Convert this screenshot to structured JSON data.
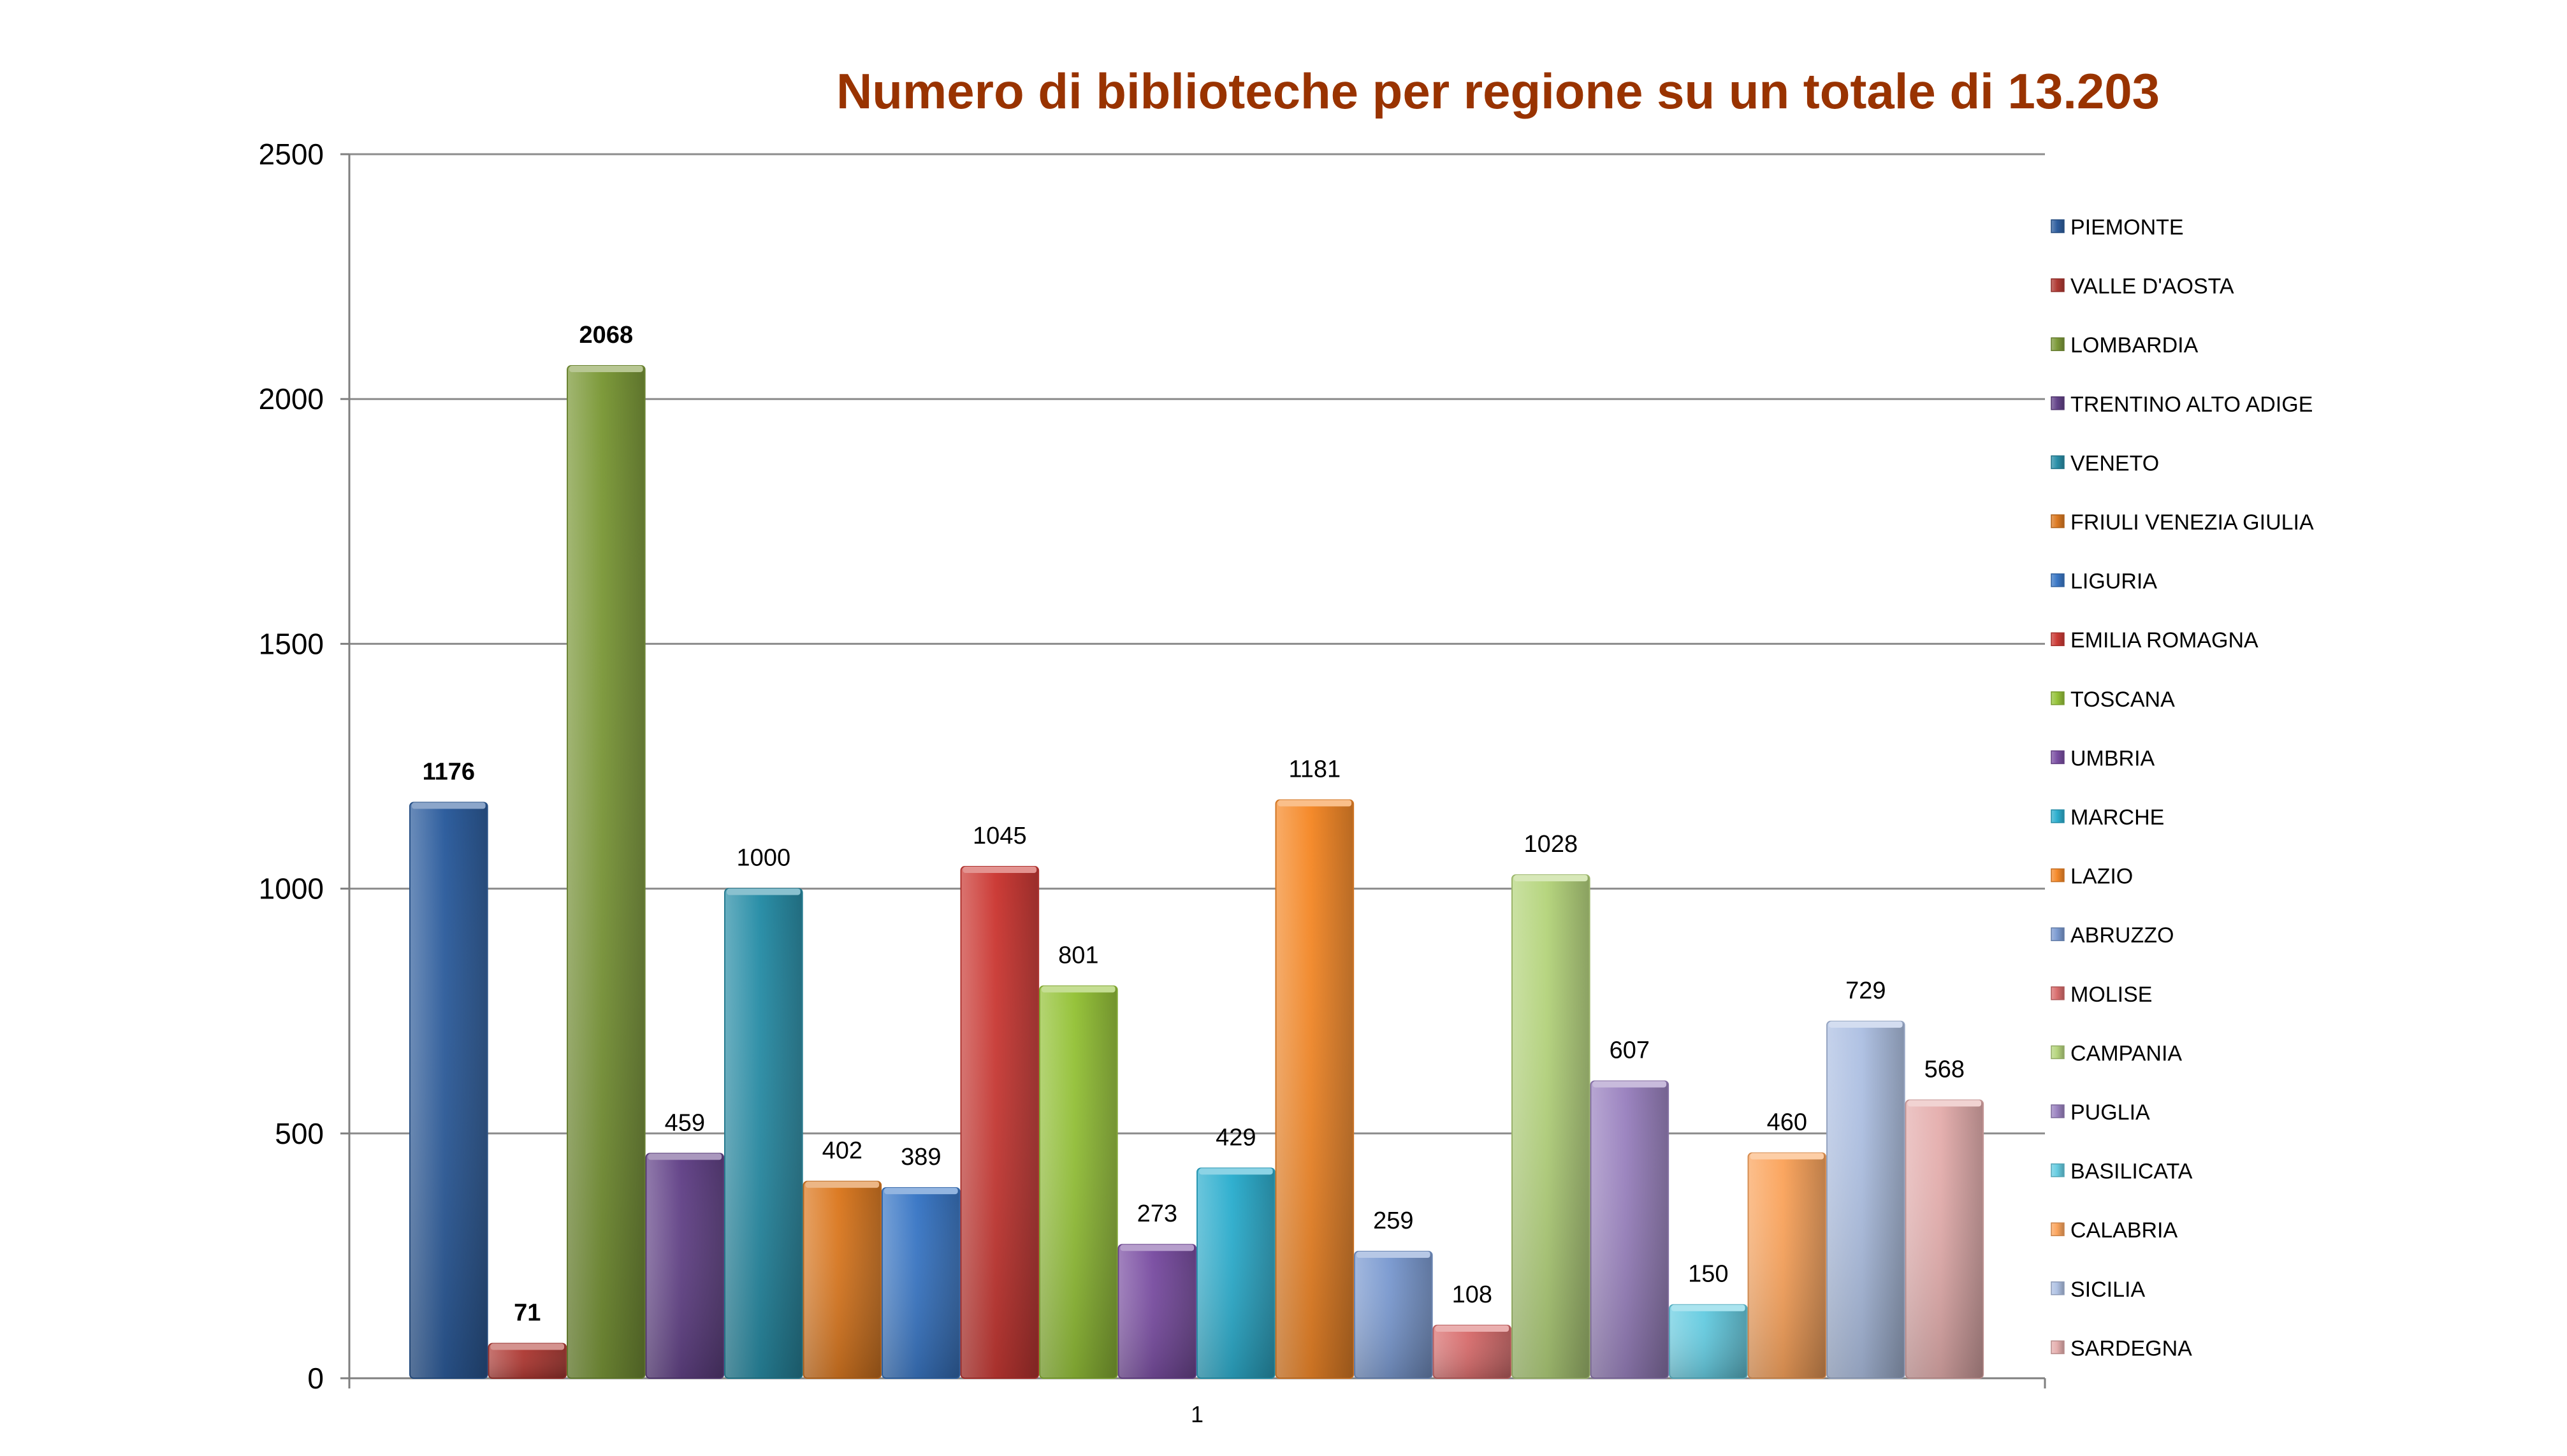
{
  "chart_data": {
    "type": "bar",
    "title": "Numero di biblioteche per regione su un totale di 13.203",
    "categories": [
      "1"
    ],
    "ylim": [
      0,
      2500
    ],
    "yticks": [
      0,
      500,
      1000,
      1500,
      2000,
      2500
    ],
    "grid": true,
    "legend_position": "right",
    "title_color": "#993300",
    "series": [
      {
        "name": "PIEMONTE",
        "values": [
          1176
        ],
        "color": "#2E5E9E",
        "label_bold": true
      },
      {
        "name": "VALLE D'AOSTA",
        "values": [
          71
        ],
        "color": "#B03A34",
        "label_bold": true
      },
      {
        "name": "LOMBARDIA",
        "values": [
          2068
        ],
        "color": "#7D9A3A",
        "label_bold": true
      },
      {
        "name": "TRENTINO ALTO ADIGE",
        "values": [
          459
        ],
        "color": "#644489",
        "label_bold": false
      },
      {
        "name": "VENETO",
        "values": [
          1000
        ],
        "color": "#2A8FA8",
        "label_bold": false
      },
      {
        "name": "FRIULI VENEZIA GIULIA",
        "values": [
          402
        ],
        "color": "#DC7A22",
        "label_bold": false
      },
      {
        "name": "LIGURIA",
        "values": [
          389
        ],
        "color": "#3B78C6",
        "label_bold": false
      },
      {
        "name": "EMILIA ROMAGNA",
        "values": [
          1045
        ],
        "color": "#CC3B36",
        "label_bold": false
      },
      {
        "name": "TOSCANA",
        "values": [
          801
        ],
        "color": "#96C33A",
        "label_bold": false
      },
      {
        "name": "UMBRIA",
        "values": [
          273
        ],
        "color": "#7B4FA3",
        "label_bold": false
      },
      {
        "name": "MARCHE",
        "values": [
          429
        ],
        "color": "#2EAFCF",
        "label_bold": false
      },
      {
        "name": "LAZIO",
        "values": [
          1181
        ],
        "color": "#F58A2A",
        "label_bold": false
      },
      {
        "name": "ABRUZZO",
        "values": [
          259
        ],
        "color": "#7C9BD1",
        "label_bold": false
      },
      {
        "name": "MOLISE",
        "values": [
          108
        ],
        "color": "#D96E6E",
        "label_bold": false
      },
      {
        "name": "CAMPANIA",
        "values": [
          1028
        ],
        "color": "#B6D57E",
        "label_bold": false
      },
      {
        "name": "PUGLIA",
        "values": [
          607
        ],
        "color": "#9B83C0",
        "label_bold": false
      },
      {
        "name": "BASILICATA",
        "values": [
          150
        ],
        "color": "#67CDE2",
        "label_bold": false
      },
      {
        "name": "CALABRIA",
        "values": [
          460
        ],
        "color": "#FBA55E",
        "label_bold": false
      },
      {
        "name": "SICILIA",
        "values": [
          729
        ],
        "color": "#AFC1E3",
        "label_bold": false
      },
      {
        "name": "SARDEGNA",
        "values": [
          568
        ],
        "color": "#E5AFAE",
        "label_bold": false
      }
    ]
  }
}
